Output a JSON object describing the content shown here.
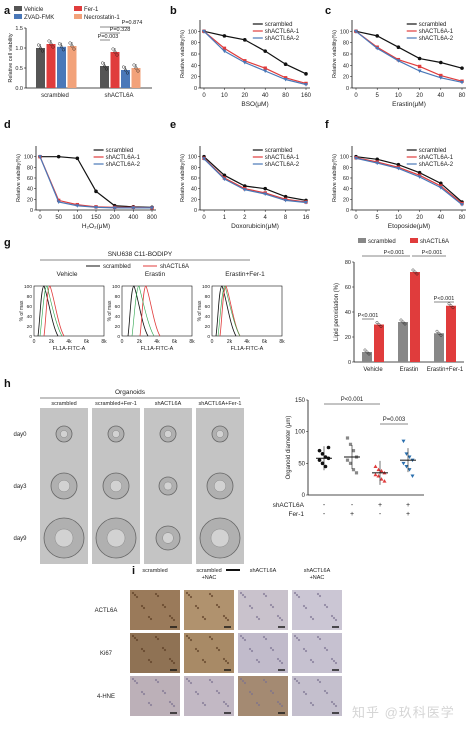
{
  "panels": {
    "a": {
      "label": "a",
      "ylabel": "Relative cell viability",
      "yticks": [
        "0.0",
        "0.5",
        "1.0",
        "1.5"
      ],
      "legend": [
        "Vehicle",
        "Fer-1",
        "ZVAD-FMK",
        "Necrostatin-1"
      ],
      "colors": [
        "#555555",
        "#e03c3c",
        "#4a78b8",
        "#f2a27a"
      ],
      "groups": [
        "scrambled",
        "shACTL6A"
      ],
      "pvalues": [
        "P=0.874",
        "P=0.328",
        "P=0.003"
      ]
    },
    "b": {
      "label": "b",
      "xlabel": "BSO(μM)",
      "ylabel": "Relative viability(%)",
      "xticks": [
        "0",
        "10",
        "20",
        "40",
        "80",
        "160"
      ]
    },
    "c": {
      "label": "c",
      "xlabel": "Erastin(μM)",
      "ylabel": "Relative viability(%)",
      "xticks": [
        "0",
        "5",
        "10",
        "20",
        "40",
        "80"
      ]
    },
    "d": {
      "label": "d",
      "xlabel": "H₂O₂(μM)",
      "ylabel": "Relative viability(%)",
      "xticks": [
        "0",
        "50",
        "100",
        "150",
        "200",
        "400",
        "800"
      ]
    },
    "e": {
      "label": "e",
      "xlabel": "Doxorubicin(μM)",
      "ylabel": "Relative viability(%)",
      "xticks": [
        "0",
        "1",
        "2",
        "4",
        "8",
        "16"
      ]
    },
    "f": {
      "label": "f",
      "xlabel": "Etoposide(μM)",
      "ylabel": "Relative viability(%)",
      "xticks": [
        "0",
        "5",
        "10",
        "20",
        "40",
        "80"
      ]
    },
    "line_yticks": [
      "0",
      "20",
      "40",
      "60",
      "80",
      "100"
    ],
    "line_legend": [
      "scrambled",
      "shACTL6A-1",
      "shACTL6A-2"
    ],
    "line_colors": [
      "#111111",
      "#e03c3c",
      "#4a78b8"
    ],
    "g": {
      "label": "g",
      "title": "SNU638  C11-BODIPY",
      "legend": [
        "scrambled",
        "shACTL6A"
      ],
      "histos": [
        "Vehicle",
        "Erastin",
        "Erastin+Fer-1"
      ],
      "xlabel": "FL1A-FITC-A",
      "ylabel": "% of max",
      "xticks": [
        "0",
        "2k",
        "4k",
        "6k",
        "8k"
      ],
      "yticks": [
        "0",
        "20",
        "40",
        "60",
        "80",
        "100"
      ],
      "bar_ylabel": "Lipid peroxidation (%)",
      "bar_yticks": [
        "0",
        "20",
        "40",
        "60",
        "80"
      ],
      "bar_groups": [
        "Vehicle",
        "Erastin",
        "Erastin+Fer-1"
      ],
      "bar_pvalues": [
        "P<0.001",
        "P<0.001",
        "P<0.001",
        "P<0.001"
      ]
    },
    "h": {
      "label": "h",
      "title": "Organoids",
      "cols": [
        "scrambled",
        "scrambled+Fer-1",
        "shACTL6A",
        "shACTL6A+Fer-1"
      ],
      "rows": [
        "day0",
        "day3",
        "day9"
      ],
      "ylabel": "Organoid diameter (μm)",
      "yticks": [
        "0",
        "50",
        "100",
        "150"
      ],
      "pvalues": [
        "P<0.001",
        "P=0.003"
      ],
      "factors": [
        {
          "name": "shACTL6A",
          "values": [
            "-",
            "-",
            "+",
            "+"
          ]
        },
        {
          "name": "Fer-1",
          "values": [
            "-",
            "+",
            "-",
            "+"
          ]
        }
      ]
    },
    "i": {
      "label": "i",
      "cols": [
        "scrambled",
        "scrambled\n+NAC",
        "shACTL6A",
        "shACTL6A\n+NAC"
      ],
      "rows": [
        "ACTL6A",
        "Ki67",
        "4-HNE"
      ]
    }
  },
  "chart_data": [
    {
      "type": "bar",
      "panel": "a",
      "categories": [
        "scrambled",
        "shACTL6A"
      ],
      "ylim": [
        0,
        1.5
      ],
      "series": [
        {
          "name": "Vehicle",
          "values": [
            1.0,
            0.55
          ]
        },
        {
          "name": "Fer-1",
          "values": [
            1.1,
            0.9
          ]
        },
        {
          "name": "ZVAD-FMK",
          "values": [
            1.03,
            0.45
          ]
        },
        {
          "name": "Necrostatin-1",
          "values": [
            1.05,
            0.5
          ]
        }
      ]
    },
    {
      "type": "line",
      "panel": "b",
      "ylim": [
        0,
        120
      ],
      "series": [
        {
          "name": "scrambled",
          "values": [
            100,
            92,
            85,
            65,
            42,
            25
          ]
        },
        {
          "name": "shACTL6A-1",
          "values": [
            100,
            70,
            48,
            35,
            18,
            8
          ]
        },
        {
          "name": "shACTL6A-2",
          "values": [
            100,
            65,
            45,
            30,
            15,
            6
          ]
        }
      ]
    },
    {
      "type": "line",
      "panel": "c",
      "ylim": [
        0,
        120
      ],
      "series": [
        {
          "name": "scrambled",
          "values": [
            100,
            92,
            72,
            52,
            45,
            35
          ]
        },
        {
          "name": "shACTL6A-1",
          "values": [
            100,
            72,
            50,
            38,
            22,
            12
          ]
        },
        {
          "name": "shACTL6A-2",
          "values": [
            100,
            70,
            48,
            30,
            18,
            10
          ]
        }
      ]
    },
    {
      "type": "line",
      "panel": "d",
      "ylim": [
        0,
        120
      ],
      "series": [
        {
          "name": "scrambled",
          "values": [
            100,
            100,
            97,
            35,
            8,
            6,
            5
          ]
        },
        {
          "name": "shACTL6A-1",
          "values": [
            100,
            18,
            10,
            6,
            5,
            5,
            4
          ]
        },
        {
          "name": "shACTL6A-2",
          "values": [
            100,
            15,
            8,
            5,
            4,
            4,
            4
          ]
        }
      ]
    },
    {
      "type": "line",
      "panel": "e",
      "ylim": [
        0,
        120
      ],
      "series": [
        {
          "name": "scrambled",
          "values": [
            100,
            65,
            45,
            40,
            25,
            18
          ]
        },
        {
          "name": "shACTL6A-1",
          "values": [
            97,
            60,
            40,
            32,
            20,
            15
          ]
        },
        {
          "name": "shACTL6A-2",
          "values": [
            96,
            58,
            38,
            30,
            18,
            14
          ]
        }
      ]
    },
    {
      "type": "line",
      "panel": "f",
      "ylim": [
        0,
        120
      ],
      "series": [
        {
          "name": "scrambled",
          "values": [
            100,
            95,
            85,
            70,
            50,
            15
          ]
        },
        {
          "name": "shACTL6A-1",
          "values": [
            98,
            90,
            80,
            65,
            45,
            12
          ]
        },
        {
          "name": "shACTL6A-2",
          "values": [
            97,
            88,
            78,
            62,
            42,
            10
          ]
        }
      ]
    },
    {
      "type": "bar",
      "panel": "g",
      "categories": [
        "Vehicle",
        "Erastin",
        "Erastin+Fer-1"
      ],
      "ylim": [
        0,
        80
      ],
      "series": [
        {
          "name": "scrambled",
          "values": [
            8,
            32,
            23
          ]
        },
        {
          "name": "shACTL6A",
          "values": [
            30,
            72,
            45
          ]
        }
      ]
    },
    {
      "type": "scatter",
      "panel": "h",
      "ylim": [
        0,
        150
      ],
      "categories": [
        "scrambled",
        "scrambled+Fer-1",
        "shACTL6A",
        "shACTL6A+Fer-1"
      ],
      "means": [
        58,
        60,
        35,
        55
      ],
      "series": [
        {
          "color": "#111111",
          "values": [
            70,
            65,
            60,
            58,
            55,
            50,
            45,
            75
          ]
        },
        {
          "color": "#888888",
          "values": [
            90,
            80,
            70,
            60,
            55,
            50,
            40,
            35
          ]
        },
        {
          "color": "#e03c3c",
          "values": [
            45,
            40,
            38,
            35,
            32,
            30,
            25,
            22
          ]
        },
        {
          "color": "#2a6fae",
          "values": [
            85,
            65,
            60,
            55,
            50,
            45,
            40,
            30
          ]
        }
      ]
    }
  ],
  "watermark": "知乎 @玖科医学"
}
